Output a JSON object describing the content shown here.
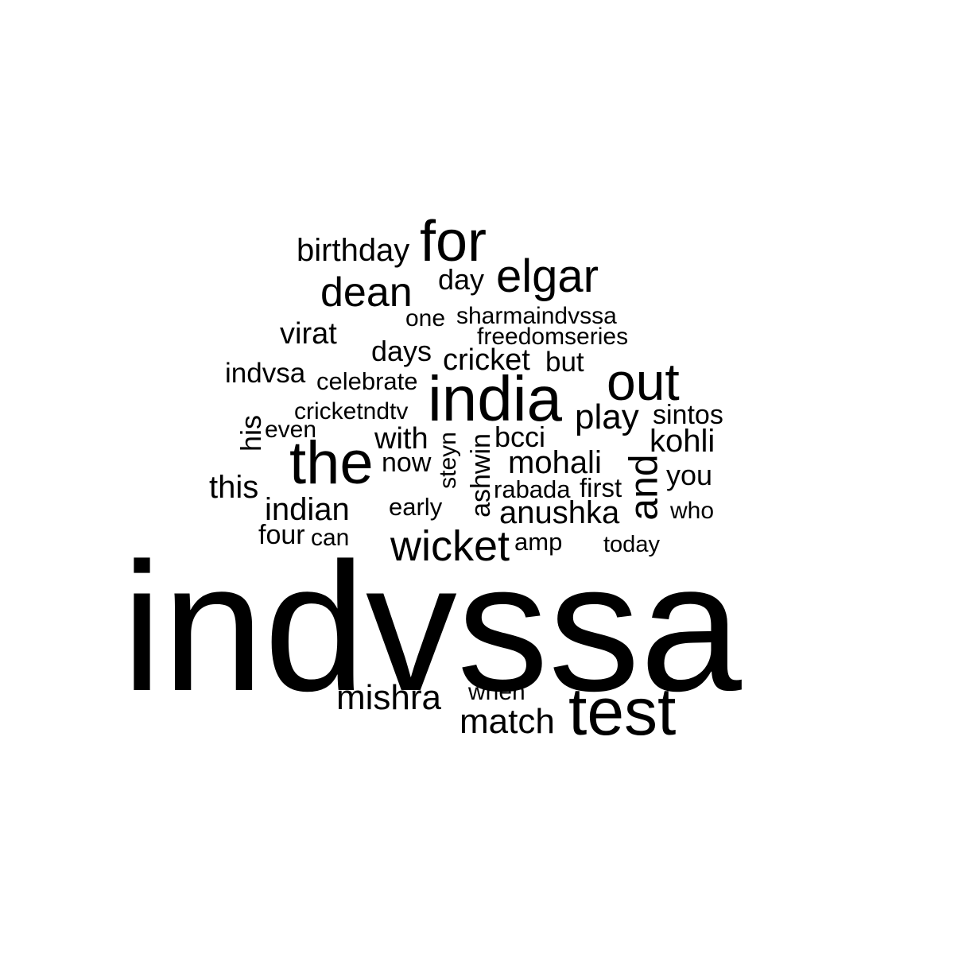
{
  "words": {
    "birthday": "birthday",
    "for": "for",
    "elgar": "elgar",
    "day": "day",
    "dean": "dean",
    "one": "one",
    "sharmaindvssa": "sharmaindvssa",
    "freedomseries": "freedomseries",
    "virat": "virat",
    "days": "days",
    "cricket": "cricket",
    "but": "but",
    "indvsa": "indvsa",
    "celebrate": "celebrate",
    "india": "india",
    "out": "out",
    "cricketndtv": "cricketndtv",
    "play": "play",
    "sintos": "sintos",
    "his": "his",
    "even": "even",
    "with": "with",
    "steyn": "steyn",
    "ashwin": "ashwin",
    "bcci": "bcci",
    "kohli": "kohli",
    "the": "the",
    "now": "now",
    "mohali": "mohali",
    "and": "and",
    "you": "you",
    "this": "this",
    "rabada": "rabada",
    "first": "first",
    "indian": "indian",
    "early": "early",
    "anushka": "anushka",
    "who": "who",
    "four": "four",
    "can": "can",
    "wicket": "wicket",
    "amp": "amp",
    "today": "today",
    "indvssa": "indvssa",
    "mishra": "mishra",
    "when": "when",
    "match": "match",
    "test": "test"
  }
}
